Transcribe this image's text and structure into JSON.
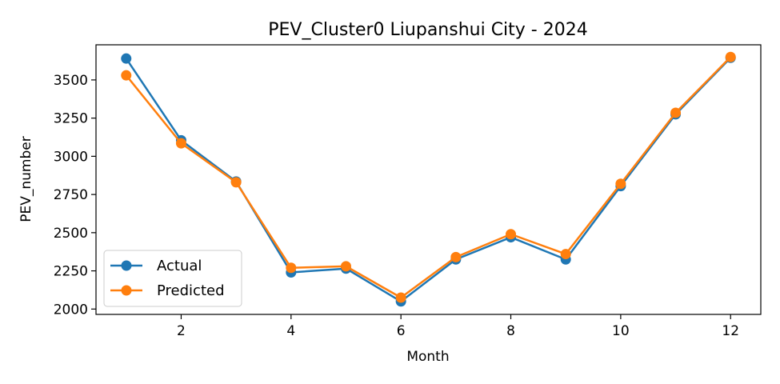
{
  "chart_data": {
    "type": "line",
    "title": "PEV_Cluster0 Liupanshui City - 2024",
    "xlabel": "Month",
    "ylabel": "PEV_number",
    "x": [
      1,
      2,
      3,
      4,
      5,
      6,
      7,
      8,
      9,
      10,
      11,
      12
    ],
    "xlim": [
      0.45,
      12.55
    ],
    "ylim": [
      1965,
      3730
    ],
    "xticks": [
      2,
      4,
      6,
      8,
      10,
      12
    ],
    "yticks": [
      2000,
      2250,
      2500,
      2750,
      3000,
      3250,
      3500
    ],
    "grid": false,
    "legend_position": "lower-left",
    "series": [
      {
        "name": "Actual",
        "color": "#1f77b4",
        "marker": "circle",
        "values": [
          3640,
          3105,
          2835,
          2240,
          2265,
          2050,
          2325,
          2470,
          2325,
          2805,
          3275,
          3645
        ]
      },
      {
        "name": "Predicted",
        "color": "#ff7f0e",
        "marker": "circle",
        "values": [
          3530,
          3085,
          2830,
          2270,
          2280,
          2075,
          2340,
          2490,
          2360,
          2820,
          3285,
          3650
        ]
      }
    ]
  }
}
